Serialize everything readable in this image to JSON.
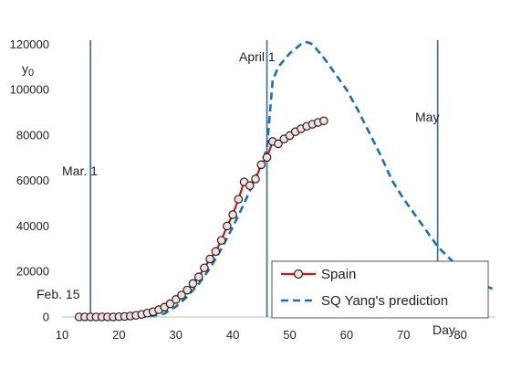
{
  "chart_data": {
    "type": "line",
    "title": "",
    "xlabel": "Day",
    "ylabel": "y0",
    "xlim": [
      10,
      86
    ],
    "ylim": [
      0,
      125000
    ],
    "x_ticks": [
      "10",
      "20",
      "30",
      "40",
      "50",
      "60",
      "70",
      "80"
    ],
    "y_ticks": [
      "0",
      "20000",
      "40000",
      "60000",
      "80000",
      "100000",
      "120000"
    ],
    "grid": false,
    "legend_position": "bottom-right",
    "colors": {
      "spain": "#dd1111",
      "marker_fill": "#f7dede",
      "marker_edge": "#222222",
      "prediction": "#1a6faf",
      "vlines": "#3465a4"
    },
    "vertical_lines": [
      {
        "x": 15,
        "label": "Feb. 15"
      },
      {
        "x": 15,
        "label": "Mar. 1"
      },
      {
        "x": 46,
        "label": "April 1"
      },
      {
        "x": 76,
        "label": "May"
      }
    ],
    "series": [
      {
        "name": "Spain",
        "style": "solid-with-circle-markers",
        "x": [
          13,
          14,
          15,
          16,
          17,
          18,
          19,
          20,
          21,
          22,
          23,
          24,
          25,
          26,
          27,
          28,
          29,
          30,
          31,
          32,
          33,
          34,
          35,
          36,
          37,
          38,
          39,
          40,
          41,
          42,
          43,
          44,
          45,
          46,
          47,
          48,
          49,
          50,
          51,
          52,
          53,
          54,
          55,
          56
        ],
        "values": [
          0,
          0,
          0,
          0,
          0,
          0,
          0,
          100,
          200,
          400,
          700,
          1100,
          1700,
          2300,
          3200,
          4300,
          5800,
          7700,
          9600,
          11800,
          14700,
          17600,
          21600,
          25500,
          28800,
          33700,
          40000,
          45000,
          51800,
          59400,
          57800,
          60700,
          67000,
          70200,
          77200,
          76200,
          78300,
          79800,
          81500,
          82800,
          83900,
          84800,
          85600,
          86300
        ]
      },
      {
        "name": "SQ Yang's prediction",
        "style": "dashed",
        "x": [
          13,
          20,
          25,
          28,
          30,
          32,
          34,
          36,
          38,
          40,
          42,
          44,
          45,
          46,
          47,
          48,
          50,
          52,
          53,
          54,
          56,
          58,
          60,
          62,
          64,
          66,
          68,
          70,
          72,
          74,
          76,
          78,
          80,
          82,
          84,
          86
        ],
        "values": [
          0,
          0,
          0,
          1500,
          4500,
          9000,
          14500,
          21500,
          30000,
          39500,
          50000,
          61000,
          67500,
          74000,
          104000,
          110000,
          116000,
          120000,
          121000,
          120000,
          114000,
          107000,
          100000,
          91000,
          81000,
          71000,
          60000,
          52000,
          45000,
          38000,
          31000,
          26000,
          21000,
          17000,
          14000,
          12000
        ]
      }
    ]
  }
}
